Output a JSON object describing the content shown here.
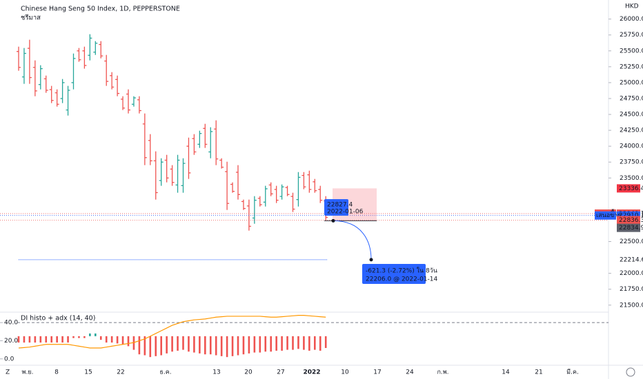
{
  "chart_data": [
    {
      "type": "ohlc",
      "title": "Chinese Hang Seng 50 Index, 1D, PEPPERSTONE",
      "subtitle": "ชรีมาส",
      "currency": "HKD",
      "color_up": "#26a69a",
      "color_down": "#ef5350",
      "ylim": [
        21400,
        26300
      ],
      "yticks": [
        {
          "value": 26000,
          "label": "26000.0"
        },
        {
          "value": 25750,
          "label": "25750.0"
        },
        {
          "value": 25500,
          "label": "25500.0"
        },
        {
          "value": 25250,
          "label": "25250.0"
        },
        {
          "value": 25000,
          "label": "25000.0"
        },
        {
          "value": 24750,
          "label": "24750.0"
        },
        {
          "value": 24500,
          "label": "24500.0"
        },
        {
          "value": 24250,
          "label": "24250.0"
        },
        {
          "value": 24000,
          "label": "24000.0"
        },
        {
          "value": 23750,
          "label": "23750.0"
        },
        {
          "value": 23500,
          "label": "23500.0"
        },
        {
          "value": 22500,
          "label": "22500.0"
        },
        {
          "value": 22000,
          "label": "22000.0"
        },
        {
          "value": 21750,
          "label": "21750.0"
        },
        {
          "value": 21500,
          "label": "21500.0"
        }
      ],
      "x_labels": [
        "พ.ย.",
        "8",
        "15",
        "22",
        "ธ.ค.",
        "13",
        "20",
        "27",
        "2022",
        "10",
        "17",
        "24",
        "ก.พ.",
        "14",
        "21",
        "มี.ค."
      ],
      "open": [
        25490,
        25090,
        25540,
        25240,
        24970,
        25060,
        24890,
        24840,
        24750,
        24570,
        25000,
        25500,
        25500,
        25430,
        25480,
        25600,
        25340,
        25110,
        25050,
        24740,
        24820,
        24660,
        24730,
        24350,
        24090,
        23770,
        23460,
        23780,
        23640,
        23390,
        23380,
        24000,
        24120,
        24030,
        24280,
        23910,
        24270,
        23780,
        23600,
        23400,
        23590,
        23130,
        23060,
        22870,
        23180,
        23120,
        23390,
        23320,
        23210,
        23350,
        23210,
        23160,
        23540,
        23550,
        23440,
        23320,
        23140
      ],
      "high": [
        25566,
        25545,
        25675,
        25350,
        25274,
        25111,
        24949,
        24894,
        25057,
        24949,
        25458,
        25545,
        25566,
        25762,
        25653,
        25653,
        25436,
        25165,
        25111,
        24786,
        24894,
        24786,
        24786,
        24515,
        24190,
        23919,
        23810,
        23864,
        23702,
        23864,
        23810,
        24135,
        24190,
        24244,
        24352,
        24298,
        24407,
        23810,
        23756,
        23431,
        23702,
        23160,
        23160,
        23214,
        23214,
        23377,
        23431,
        23377,
        23398,
        23377,
        23268,
        23593,
        23593,
        23615,
        23485,
        23377,
        23214
      ],
      "low": [
        25187,
        24981,
        24981,
        24786,
        24894,
        24840,
        24678,
        24623,
        24678,
        24482,
        24894,
        25328,
        25220,
        25350,
        25436,
        25382,
        24949,
        24894,
        24786,
        24569,
        24515,
        24623,
        24515,
        23702,
        23702,
        23160,
        23377,
        23431,
        23377,
        23268,
        23268,
        23485,
        23864,
        23973,
        23973,
        23810,
        23702,
        23648,
        22997,
        23268,
        23160,
        22997,
        22672,
        22780,
        23051,
        23051,
        23214,
        23106,
        23160,
        23214,
        22965,
        23051,
        23323,
        23268,
        23268,
        23106,
        22835
      ],
      "close": [
        25240,
        25460,
        25080,
        24870,
        25220,
        24880,
        24720,
        24660,
        25000,
        24880,
        25380,
        25360,
        25270,
        25700,
        25620,
        25420,
        25020,
        24930,
        24830,
        24600,
        24570,
        24760,
        24560,
        23820,
        23770,
        23270,
        23750,
        23500,
        23430,
        23780,
        23730,
        23580,
        23910,
        24200,
        24030,
        24230,
        23800,
        23670,
        23100,
        23290,
        23240,
        23020,
        22740,
        23150,
        23080,
        23330,
        23250,
        23150,
        23360,
        23240,
        23010,
        23510,
        23360,
        23320,
        23300,
        23150,
        22880
      ],
      "price_labels": [
        {
          "value": 23336.4,
          "color": "#f23645"
        },
        {
          "label": "เสนอซื้อ",
          "value": 22940.1,
          "color": "#ef5350"
        },
        {
          "label": "เสนอขาย",
          "value": 22910.1,
          "color": "#2962ff"
        },
        {
          "value": 22836.3,
          "color": "#ef5350"
        },
        {
          "value": 22834.9,
          "color": "#5d606b"
        },
        {
          "value": 22214.6
        }
      ],
      "projection": {
        "start_price": 22827.4,
        "start_date": "2022-01-06",
        "change_label": "-621.3 (-2.72%) ใน 8วัน",
        "end_label": "22206.0 @ 2022-01-14"
      }
    },
    {
      "type": "bar",
      "title": "DI histo + adx (14, 40)",
      "ylim": [
        -7,
        50
      ],
      "yticks": [
        {
          "value": 40,
          "label": "40.0"
        },
        {
          "value": 20,
          "label": "20.0"
        },
        {
          "value": 0,
          "label": "0.0"
        }
      ],
      "reference_line": 40,
      "base": 25,
      "series": [
        {
          "type": "bar",
          "color_up": "#26a69a",
          "color_down": "#ef5350",
          "values": [
            18,
            18,
            18,
            18,
            18,
            18,
            18,
            18,
            18,
            18,
            23,
            23,
            23,
            28,
            28,
            21,
            18,
            18,
            17,
            16,
            14,
            10,
            5,
            4,
            2,
            3,
            4,
            6,
            8,
            9,
            10,
            8,
            7,
            6,
            5,
            5,
            4,
            3,
            2,
            3,
            4,
            5,
            6,
            7,
            7,
            8,
            8,
            9,
            9,
            10,
            10,
            11,
            10,
            9,
            10,
            9,
            12
          ]
        },
        {
          "type": "line",
          "color": "#ff9800",
          "values": [
            12,
            12.5,
            13,
            14,
            15,
            16,
            16,
            16,
            16,
            16,
            15,
            14,
            13,
            12,
            12,
            12,
            13,
            14,
            15,
            16,
            17,
            18,
            20,
            22,
            25,
            28,
            31,
            34,
            37,
            39,
            41,
            42,
            43,
            43.5,
            44,
            45,
            46,
            46.5,
            47,
            47,
            47,
            47,
            47,
            47,
            47,
            46.5,
            46,
            46,
            46.5,
            47,
            47.5,
            48,
            48,
            47.5,
            47,
            46.5,
            46
          ]
        }
      ]
    }
  ]
}
